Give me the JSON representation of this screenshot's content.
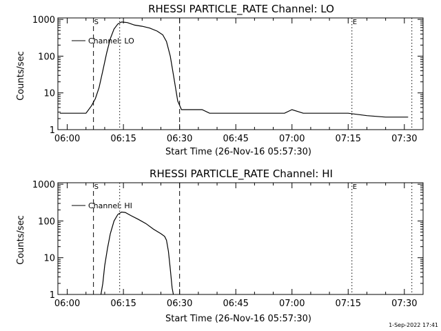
{
  "chart_data": [
    {
      "type": "line",
      "title": "RHESSI PARTICLE_RATE Channel: LO",
      "xlabel": "Start Time (26-Nov-16 05:57:30)",
      "ylabel": "Counts/sec",
      "xlim": [
        "05:57:30",
        "07:35:00"
      ],
      "ylim": [
        1,
        1000
      ],
      "yscale": "log",
      "x_ticks": [
        "06:00",
        "06:15",
        "06:30",
        "06:45",
        "07:00",
        "07:15",
        "07:30"
      ],
      "y_ticks": [
        "1",
        "10",
        "100",
        "1000"
      ],
      "legend": "Channel: LO",
      "legend_position": "top-left",
      "markers": [
        {
          "label": "S",
          "time": "06:07:00",
          "style": "dashed"
        },
        {
          "label": "",
          "time": "06:14:00",
          "style": "dotted"
        },
        {
          "label": "",
          "time": "06:30:00",
          "style": "dashed"
        },
        {
          "label": "E",
          "time": "07:16:00",
          "style": "dotted"
        },
        {
          "label": "",
          "time": "07:32:00",
          "style": "dotted"
        }
      ],
      "series": [
        {
          "name": "Channel: LO",
          "points": [
            [
              "05:58:00",
              2.8
            ],
            [
              "06:00:00",
              2.8
            ],
            [
              "06:02:00",
              2.8
            ],
            [
              "06:05:00",
              2.8
            ],
            [
              "06:06:30",
              4.5
            ],
            [
              "06:07:30",
              7
            ],
            [
              "06:08:30",
              14
            ],
            [
              "06:09:30",
              40
            ],
            [
              "06:10:30",
              120
            ],
            [
              "06:11:30",
              300
            ],
            [
              "06:12:30",
              550
            ],
            [
              "06:13:30",
              750
            ],
            [
              "06:14:30",
              850
            ],
            [
              "06:16:00",
              820
            ],
            [
              "06:18:00",
              700
            ],
            [
              "06:20:00",
              650
            ],
            [
              "06:22:00",
              580
            ],
            [
              "06:24:00",
              480
            ],
            [
              "06:25:30",
              380
            ],
            [
              "06:26:30",
              250
            ],
            [
              "06:27:30",
              100
            ],
            [
              "06:28:30",
              25
            ],
            [
              "06:29:30",
              6
            ],
            [
              "06:30:30",
              3.5
            ],
            [
              "06:33:00",
              3.5
            ],
            [
              "06:36:00",
              3.5
            ],
            [
              "06:38:00",
              2.8
            ],
            [
              "06:45:00",
              2.8
            ],
            [
              "06:52:00",
              2.8
            ],
            [
              "06:58:00",
              2.8
            ],
            [
              "07:00:00",
              3.5
            ],
            [
              "07:03:00",
              2.8
            ],
            [
              "07:10:00",
              2.8
            ],
            [
              "07:15:00",
              2.8
            ],
            [
              "07:20:00",
              2.4
            ],
            [
              "07:25:00",
              2.2
            ],
            [
              "07:31:00",
              2.2
            ]
          ]
        }
      ]
    },
    {
      "type": "line",
      "title": "RHESSI PARTICLE_RATE Channel: HI",
      "xlabel": "Start Time (26-Nov-16 05:57:30)",
      "ylabel": "Counts/sec",
      "xlim": [
        "05:57:30",
        "07:35:00"
      ],
      "ylim": [
        1,
        1000
      ],
      "yscale": "log",
      "x_ticks": [
        "06:00",
        "06:15",
        "06:30",
        "06:45",
        "07:00",
        "07:15",
        "07:30"
      ],
      "y_ticks": [
        "1",
        "10",
        "100",
        "1000"
      ],
      "legend": "Channel: HI",
      "legend_position": "top-left",
      "markers": [
        {
          "label": "S",
          "time": "06:07:00",
          "style": "dashed"
        },
        {
          "label": "",
          "time": "06:14:00",
          "style": "dotted"
        },
        {
          "label": "",
          "time": "06:30:00",
          "style": "dashed"
        },
        {
          "label": "E",
          "time": "07:16:00",
          "style": "dotted"
        },
        {
          "label": "",
          "time": "07:32:00",
          "style": "dotted"
        }
      ],
      "series": [
        {
          "name": "Channel: HI",
          "points": [
            [
              "06:09:00",
              1.0
            ],
            [
              "06:09:30",
              2
            ],
            [
              "06:10:00",
              6
            ],
            [
              "06:10:45",
              18
            ],
            [
              "06:11:30",
              45
            ],
            [
              "06:12:30",
              100
            ],
            [
              "06:13:30",
              150
            ],
            [
              "06:14:30",
              175
            ],
            [
              "06:15:30",
              170
            ],
            [
              "06:17:00",
              140
            ],
            [
              "06:19:00",
              110
            ],
            [
              "06:21:00",
              85
            ],
            [
              "06:23:00",
              60
            ],
            [
              "06:25:00",
              45
            ],
            [
              "06:26:00",
              38
            ],
            [
              "06:26:30",
              30
            ],
            [
              "06:27:00",
              15
            ],
            [
              "06:27:30",
              5
            ],
            [
              "06:28:00",
              1.5
            ],
            [
              "06:28:20",
              1.0
            ]
          ]
        }
      ]
    }
  ],
  "footer": {
    "timestamp": "1-Sep-2022 17:41"
  }
}
